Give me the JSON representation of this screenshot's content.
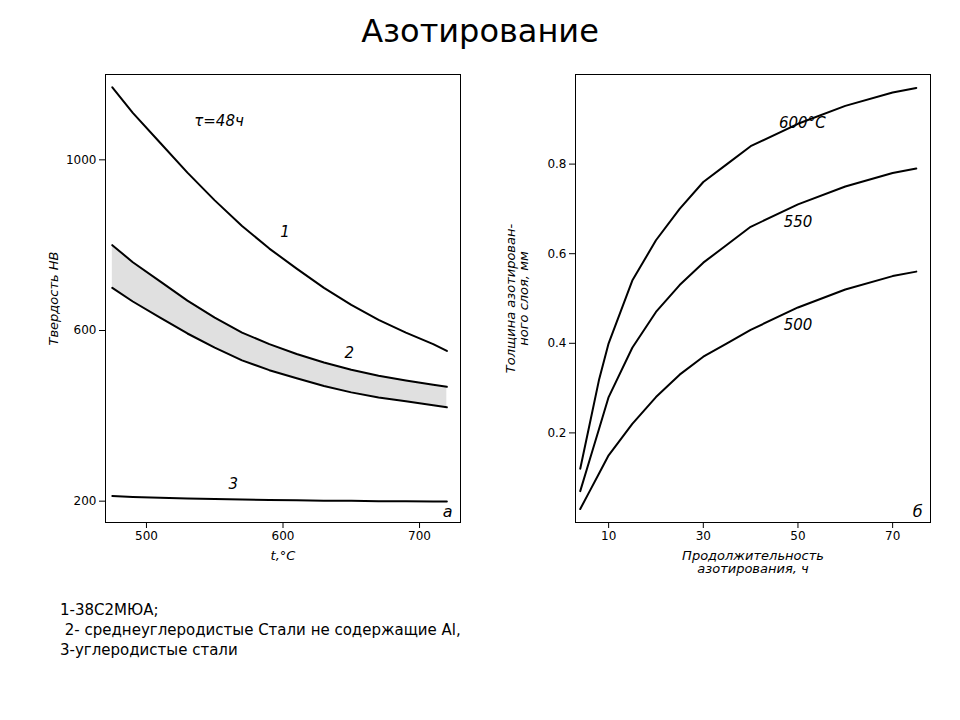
{
  "title": "Азотирование",
  "caption": "1-38С2МЮА;\n 2- среднеуглеродистые Стали не содержащие Al,\n3-углеродистые стали",
  "chart_data": [
    {
      "type": "line",
      "xlabel": "t,°С",
      "ylabel": "Твердость НВ",
      "xlim": [
        470,
        730
      ],
      "ylim": [
        150,
        1200
      ],
      "xticks": [
        500,
        600,
        700
      ],
      "yticks": [
        200,
        600,
        1000
      ],
      "grid": false,
      "series": [
        {
          "type": "line",
          "x": [
            475,
            490,
            510,
            530,
            550,
            570,
            590,
            610,
            630,
            650,
            670,
            690,
            710,
            720
          ],
          "values": [
            1170,
            1110,
            1040,
            970,
            905,
            845,
            792,
            745,
            700,
            660,
            625,
            595,
            568,
            552
          ]
        },
        {
          "type": "band",
          "x": [
            475,
            490,
            510,
            530,
            550,
            570,
            590,
            610,
            630,
            650,
            670,
            690,
            710,
            720
          ],
          "upper": [
            800,
            760,
            715,
            670,
            630,
            595,
            568,
            545,
            525,
            508,
            494,
            483,
            473,
            468
          ],
          "lower": [
            700,
            668,
            630,
            593,
            560,
            530,
            507,
            488,
            470,
            455,
            443,
            434,
            425,
            420
          ]
        },
        {
          "type": "line",
          "x": [
            475,
            490,
            510,
            530,
            550,
            570,
            590,
            610,
            630,
            650,
            670,
            690,
            710,
            720
          ],
          "values": [
            212,
            210,
            208,
            206,
            205,
            204,
            203,
            202,
            201,
            201,
            200,
            200,
            199,
            199
          ]
        }
      ],
      "annotations": [
        {
          "text": "1",
          "x": 598,
          "y": 820
        },
        {
          "text": "2",
          "x": 645,
          "y": 535
        },
        {
          "text": "3",
          "x": 560,
          "y": 228
        },
        {
          "text": "τ=48ч",
          "x": 535,
          "y": 1080
        },
        {
          "text": "а"
        }
      ]
    },
    {
      "type": "line",
      "xlabel": "Продолжительность\nазотирования, ч",
      "ylabel": "Толщина азотирован-\nного слоя, мм",
      "xlim": [
        3,
        78
      ],
      "ylim": [
        0.0,
        1.0
      ],
      "xticks": [
        10,
        30,
        50,
        70
      ],
      "yticks": [
        0.2,
        0.4,
        0.6,
        0.8
      ],
      "grid": false,
      "series": [
        {
          "type": "line",
          "x": [
            4,
            6,
            8,
            10,
            15,
            20,
            25,
            30,
            35,
            40,
            50,
            60,
            70,
            75
          ],
          "values": [
            0.12,
            0.22,
            0.32,
            0.4,
            0.54,
            0.63,
            0.7,
            0.76,
            0.8,
            0.84,
            0.89,
            0.93,
            0.96,
            0.97
          ]
        },
        {
          "type": "line",
          "x": [
            4,
            6,
            8,
            10,
            15,
            20,
            25,
            30,
            35,
            40,
            50,
            60,
            70,
            75
          ],
          "values": [
            0.07,
            0.14,
            0.21,
            0.28,
            0.39,
            0.47,
            0.53,
            0.58,
            0.62,
            0.66,
            0.71,
            0.75,
            0.78,
            0.79
          ]
        },
        {
          "type": "line",
          "x": [
            4,
            6,
            8,
            10,
            15,
            20,
            25,
            30,
            35,
            40,
            50,
            60,
            70,
            75
          ],
          "values": [
            0.03,
            0.07,
            0.11,
            0.15,
            0.22,
            0.28,
            0.33,
            0.37,
            0.4,
            0.43,
            0.48,
            0.52,
            0.55,
            0.56
          ]
        }
      ],
      "annotations": [
        {
          "text": "600°С",
          "x": 46,
          "y": 0.88
        },
        {
          "text": "550",
          "x": 47,
          "y": 0.66
        },
        {
          "text": "500",
          "x": 47,
          "y": 0.43
        },
        {
          "text": "б"
        }
      ]
    }
  ]
}
